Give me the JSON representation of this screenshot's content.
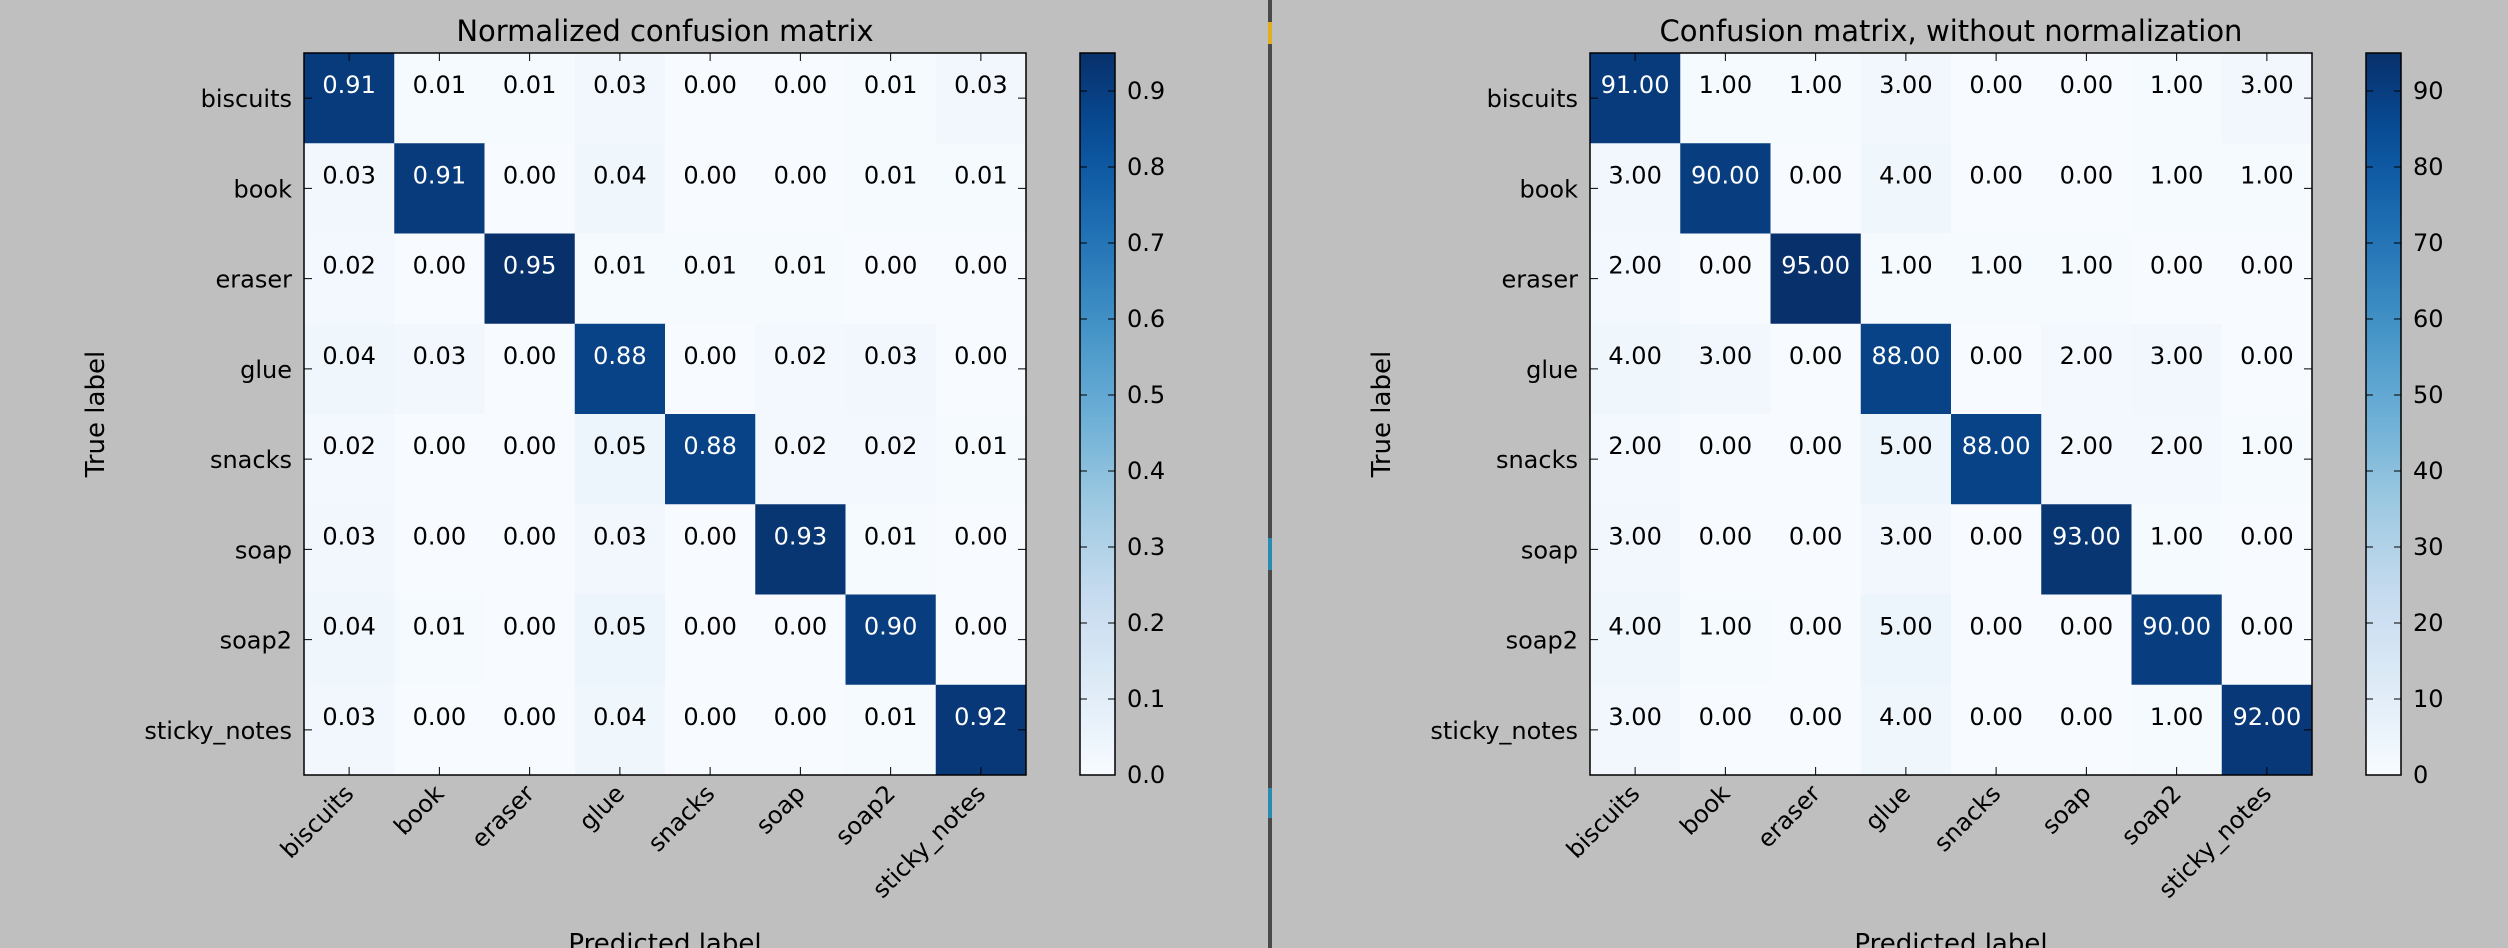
{
  "chart_data": [
    {
      "type": "heatmap",
      "title": "Normalized confusion matrix",
      "xlabel": "Predicted label",
      "ylabel": "True label",
      "x_categories": [
        "biscuits",
        "book",
        "eraser",
        "glue",
        "snacks",
        "soap",
        "soap2",
        "sticky_notes"
      ],
      "y_categories": [
        "biscuits",
        "book",
        "eraser",
        "glue",
        "snacks",
        "soap",
        "soap2",
        "sticky_notes"
      ],
      "values": [
        [
          0.91,
          0.01,
          0.01,
          0.03,
          0.0,
          0.0,
          0.01,
          0.03
        ],
        [
          0.03,
          0.91,
          0.0,
          0.04,
          0.0,
          0.0,
          0.01,
          0.01
        ],
        [
          0.02,
          0.0,
          0.95,
          0.01,
          0.01,
          0.01,
          0.0,
          0.0
        ],
        [
          0.04,
          0.03,
          0.0,
          0.88,
          0.0,
          0.02,
          0.03,
          0.0
        ],
        [
          0.02,
          0.0,
          0.0,
          0.05,
          0.88,
          0.02,
          0.02,
          0.01
        ],
        [
          0.03,
          0.0,
          0.0,
          0.03,
          0.0,
          0.93,
          0.01,
          0.0
        ],
        [
          0.04,
          0.01,
          0.0,
          0.05,
          0.0,
          0.0,
          0.9,
          0.0
        ],
        [
          0.03,
          0.0,
          0.0,
          0.04,
          0.0,
          0.0,
          0.01,
          0.92
        ]
      ],
      "value_format_decimals": 2,
      "colormap": "Blues",
      "vmin": 0,
      "vmax": 0.95,
      "colorbar_ticks": [
        0.0,
        0.1,
        0.2,
        0.3,
        0.4,
        0.5,
        0.6,
        0.7,
        0.8,
        0.9
      ],
      "colorbar_tick_labels": [
        "0.0",
        "0.1",
        "0.2",
        "0.3",
        "0.4",
        "0.5",
        "0.6",
        "0.7",
        "0.8",
        "0.9"
      ]
    },
    {
      "type": "heatmap",
      "title": "Confusion matrix, without normalization",
      "xlabel": "Predicted label",
      "ylabel": "True label",
      "x_categories": [
        "biscuits",
        "book",
        "eraser",
        "glue",
        "snacks",
        "soap",
        "soap2",
        "sticky_notes"
      ],
      "y_categories": [
        "biscuits",
        "book",
        "eraser",
        "glue",
        "snacks",
        "soap",
        "soap2",
        "sticky_notes"
      ],
      "values": [
        [
          91,
          1,
          1,
          3,
          0,
          0,
          1,
          3
        ],
        [
          3,
          90,
          0,
          4,
          0,
          0,
          1,
          1
        ],
        [
          2,
          0,
          95,
          1,
          1,
          1,
          0,
          0
        ],
        [
          4,
          3,
          0,
          88,
          0,
          2,
          3,
          0
        ],
        [
          2,
          0,
          0,
          5,
          88,
          2,
          2,
          1
        ],
        [
          3,
          0,
          0,
          3,
          0,
          93,
          1,
          0
        ],
        [
          4,
          1,
          0,
          5,
          0,
          0,
          90,
          0
        ],
        [
          3,
          0,
          0,
          4,
          0,
          0,
          1,
          92
        ]
      ],
      "value_format_decimals": 2,
      "colormap": "Blues",
      "vmin": 0,
      "vmax": 95,
      "colorbar_ticks": [
        0,
        10,
        20,
        30,
        40,
        50,
        60,
        70,
        80,
        90
      ],
      "colorbar_tick_labels": [
        "0",
        "10",
        "20",
        "30",
        "40",
        "50",
        "60",
        "70",
        "80",
        "90"
      ]
    }
  ],
  "colors": {
    "figure_background": "#bfbfbf",
    "divider": "#4a4a4a",
    "marker_yellow": "#e0b020",
    "marker_blue": "#2a8ab0"
  }
}
